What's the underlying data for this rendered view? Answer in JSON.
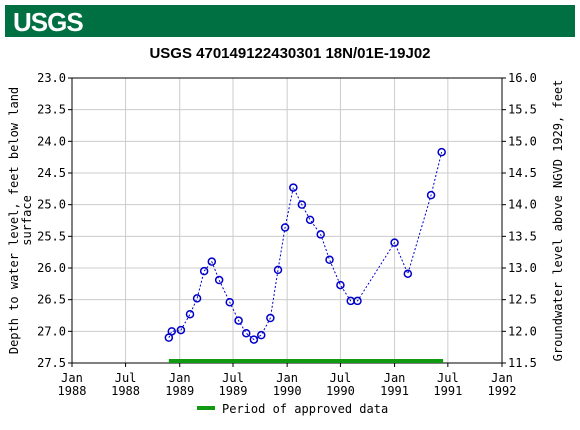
{
  "logo": {
    "text": "USGS"
  },
  "colors": {
    "logo_bg": "#006f41",
    "series": "#0000cc",
    "approved": "#119911",
    "grid": "#cccccc"
  },
  "chart_data": {
    "type": "scatter",
    "title": "USGS 470149122430301 18N/01E-19J02",
    "ylabel_left": "Depth to water level, feet below land surface",
    "ylabel_right": "Groundwater level above NGVD 1929, feet",
    "y_left_range": [
      27.5,
      23.0
    ],
    "y_right_range": [
      11.5,
      16.0
    ],
    "y_left_ticks": [
      "23.0",
      "23.5",
      "24.0",
      "24.5",
      "25.0",
      "25.5",
      "26.0",
      "26.5",
      "27.0",
      "27.5"
    ],
    "y_right_ticks": [
      "16.0",
      "15.5",
      "15.0",
      "14.5",
      "14.0",
      "13.5",
      "13.0",
      "12.5",
      "12.0",
      "11.5"
    ],
    "x_range": [
      "1988-01-01",
      "1992-01-01"
    ],
    "x_ticks": [
      {
        "date": "1988-01-01",
        "l1": "Jan",
        "l2": "1988"
      },
      {
        "date": "1988-07-01",
        "l1": "Jul",
        "l2": "1988"
      },
      {
        "date": "1989-01-01",
        "l1": "Jan",
        "l2": "1989"
      },
      {
        "date": "1989-07-01",
        "l1": "Jul",
        "l2": "1989"
      },
      {
        "date": "1990-01-01",
        "l1": "Jan",
        "l2": "1990"
      },
      {
        "date": "1990-07-01",
        "l1": "Jul",
        "l2": "1990"
      },
      {
        "date": "1991-01-01",
        "l1": "Jan",
        "l2": "1991"
      },
      {
        "date": "1991-07-01",
        "l1": "Jul",
        "l2": "1991"
      },
      {
        "date": "1992-01-01",
        "l1": "Jan",
        "l2": "1992"
      }
    ],
    "series": [
      {
        "points": [
          [
            "1988-11-25",
            27.1
          ],
          [
            "1988-12-05",
            27.0
          ],
          [
            "1989-01-05",
            26.98
          ],
          [
            "1989-02-05",
            26.73
          ],
          [
            "1989-03-01",
            26.48
          ],
          [
            "1989-03-25",
            26.05
          ],
          [
            "1989-04-20",
            25.9
          ],
          [
            "1989-05-15",
            26.19
          ],
          [
            "1989-06-20",
            26.54
          ],
          [
            "1989-07-20",
            26.83
          ],
          [
            "1989-08-15",
            27.03
          ],
          [
            "1989-09-10",
            27.13
          ],
          [
            "1989-10-05",
            27.06
          ],
          [
            "1989-11-05",
            26.79
          ],
          [
            "1989-12-01",
            26.03
          ],
          [
            "1989-12-25",
            25.36
          ],
          [
            "1990-01-22",
            24.73
          ],
          [
            "1990-02-20",
            25.0
          ],
          [
            "1990-03-20",
            25.24
          ],
          [
            "1990-04-25",
            25.47
          ],
          [
            "1990-05-25",
            25.87
          ],
          [
            "1990-07-01",
            26.27
          ],
          [
            "1990-08-05",
            26.52
          ],
          [
            "1990-08-28",
            26.52
          ],
          [
            "1991-01-01",
            25.6
          ],
          [
            "1991-02-15",
            26.09
          ],
          [
            "1991-05-05",
            24.85
          ],
          [
            "1991-06-10",
            24.17
          ]
        ]
      }
    ],
    "approved_period": [
      "1988-11-25",
      "1991-06-15"
    ],
    "legend": {
      "label": "Period of approved data",
      "position": "bottom"
    },
    "grid": true
  }
}
